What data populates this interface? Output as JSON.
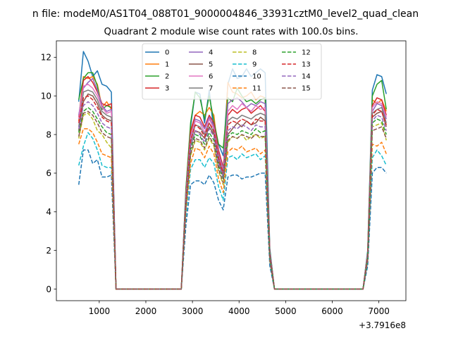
{
  "figure": {
    "suptitle": "n file: modeM0/AS1T04_088T01_9000004846_33931cztM0_level2_quad_clean"
  },
  "chart_data": {
    "type": "line",
    "title": "Quadrant 2 module wise count rates with 100.0s bins.",
    "xlabel": "",
    "ylabel": "",
    "xlim": [
      80,
      7580
    ],
    "ylim": [
      -0.6,
      12.85
    ],
    "x_offset_label": "+3.7916e8",
    "xticks": [
      1000,
      2000,
      3000,
      4000,
      5000,
      6000,
      7000
    ],
    "xtick_labels": [
      "1000",
      "2000",
      "3000",
      "4000",
      "5000",
      "6000",
      "7000"
    ],
    "yticks": [
      0,
      2,
      4,
      6,
      8,
      10,
      12
    ],
    "ytick_labels": [
      "0",
      "2",
      "4",
      "6",
      "8",
      "10",
      "12"
    ],
    "legend": {
      "placement": "top-center",
      "columns": 4
    },
    "x": [
      560,
      660,
      760,
      860,
      960,
      1060,
      1160,
      1260,
      1360,
      1460,
      2760,
      2860,
      2960,
      3060,
      3160,
      3260,
      3360,
      3460,
      3560,
      3660,
      3760,
      3860,
      3960,
      4060,
      4160,
      4260,
      4360,
      4460,
      4560,
      4660,
      4760,
      6660,
      6760,
      6860,
      6960,
      7060,
      7160
    ],
    "series": [
      {
        "name": "0",
        "color": "#1f77b4",
        "dash": "solid",
        "values": [
          9.7,
          12.3,
          11.8,
          11.0,
          11.3,
          10.6,
          10.5,
          10.2,
          0,
          0,
          0,
          5.2,
          8.4,
          10.2,
          10.1,
          8.6,
          10.3,
          8.1,
          7.5,
          6.9,
          10.6,
          11.4,
          10.9,
          11.0,
          11.4,
          11.0,
          11.2,
          11.4,
          11.2,
          2.1,
          0,
          0,
          2.0,
          10.3,
          11.1,
          11.0,
          10.1
        ]
      },
      {
        "name": "1",
        "color": "#ff7f0e",
        "dash": "solid",
        "values": [
          8.7,
          11.0,
          10.9,
          11.0,
          10.6,
          9.4,
          9.7,
          9.3,
          0,
          0,
          0,
          4.8,
          8.1,
          9.0,
          9.2,
          9.0,
          9.4,
          9.0,
          6.9,
          6.0,
          10.7,
          10.2,
          10.1,
          9.9,
          10.0,
          10.2,
          9.8,
          10.0,
          9.9,
          1.9,
          0,
          0,
          1.8,
          9.8,
          9.6,
          9.8,
          9.2
        ]
      },
      {
        "name": "2",
        "color": "#2ca02c",
        "dash": "solid",
        "values": [
          9.8,
          10.9,
          11.2,
          11.2,
          10.5,
          9.3,
          9.5,
          9.4,
          0,
          0,
          0,
          5.2,
          8.6,
          10.2,
          9.9,
          8.8,
          10.0,
          8.7,
          7.5,
          7.3,
          9.9,
          9.7,
          10.4,
          10.0,
          9.7,
          9.8,
          9.6,
          9.8,
          9.9,
          2.0,
          0,
          0,
          1.9,
          10.0,
          10.6,
          10.8,
          9.3
        ]
      },
      {
        "name": "3",
        "color": "#d62728",
        "dash": "solid",
        "values": [
          8.9,
          10.8,
          11.0,
          10.7,
          10.2,
          9.6,
          9.5,
          9.6,
          0,
          0,
          0,
          4.9,
          8.2,
          9.0,
          8.9,
          8.4,
          9.0,
          8.6,
          7.2,
          6.3,
          9.0,
          9.3,
          9.1,
          9.3,
          9.4,
          9.1,
          9.3,
          9.5,
          9.2,
          1.9,
          0,
          0,
          1.8,
          9.5,
          9.9,
          9.8,
          9.0
        ]
      },
      {
        "name": "4",
        "color": "#9467bd",
        "dash": "solid",
        "values": [
          9.0,
          10.4,
          10.7,
          10.9,
          10.3,
          9.5,
          9.2,
          9.3,
          0,
          0,
          0,
          4.7,
          7.9,
          8.8,
          8.7,
          8.3,
          8.9,
          8.4,
          7.0,
          6.2,
          9.6,
          9.8,
          9.9,
          9.7,
          9.4,
          9.6,
          9.5,
          9.7,
          9.6,
          1.9,
          0,
          0,
          1.8,
          9.2,
          9.6,
          9.5,
          8.8
        ]
      },
      {
        "name": "5",
        "color": "#8c564b",
        "dash": "solid",
        "values": [
          8.2,
          9.7,
          10.1,
          10.0,
          9.6,
          9.0,
          8.8,
          8.7,
          0,
          0,
          0,
          4.4,
          7.4,
          8.2,
          8.1,
          7.8,
          8.4,
          8.0,
          6.6,
          5.8,
          8.0,
          8.3,
          8.6,
          8.4,
          8.7,
          8.5,
          8.6,
          8.9,
          8.7,
          1.8,
          0,
          0,
          1.7,
          8.9,
          9.1,
          9.2,
          8.4
        ]
      },
      {
        "name": "6",
        "color": "#e377c2",
        "dash": "solid",
        "values": [
          8.8,
          10.5,
          10.6,
          10.4,
          10.0,
          9.4,
          9.1,
          9.2,
          0,
          0,
          0,
          4.8,
          7.8,
          8.7,
          8.6,
          8.1,
          8.8,
          8.3,
          6.9,
          6.1,
          9.2,
          9.5,
          9.3,
          9.6,
          9.4,
          9.2,
          9.5,
          9.3,
          9.4,
          1.9,
          0,
          0,
          1.8,
          9.4,
          9.7,
          9.6,
          8.9
        ]
      },
      {
        "name": "7",
        "color": "#7f7f7f",
        "dash": "solid",
        "values": [
          8.4,
          10.2,
          10.3,
          10.2,
          9.8,
          9.2,
          9.0,
          8.9,
          0,
          0,
          0,
          4.6,
          7.6,
          8.5,
          8.4,
          8.0,
          8.6,
          8.1,
          6.8,
          6.0,
          8.7,
          8.9,
          8.8,
          9.0,
          8.9,
          8.8,
          9.0,
          9.1,
          9.0,
          1.8,
          0,
          0,
          1.7,
          9.1,
          9.3,
          9.4,
          8.6
        ]
      },
      {
        "name": "8",
        "color": "#bcbd22",
        "dash": "dashed",
        "values": [
          7.8,
          9.0,
          9.1,
          8.8,
          8.2,
          8.0,
          7.6,
          7.3,
          0,
          0,
          0,
          4.2,
          6.9,
          7.7,
          7.6,
          7.2,
          7.8,
          7.4,
          6.1,
          5.4,
          7.6,
          7.9,
          7.8,
          8.0,
          7.7,
          7.9,
          8.0,
          7.8,
          7.9,
          1.6,
          0,
          0,
          1.6,
          8.4,
          8.5,
          8.6,
          7.7
        ]
      },
      {
        "name": "9",
        "color": "#17becf",
        "dash": "dashed",
        "values": [
          6.4,
          7.4,
          8.1,
          7.8,
          7.2,
          6.4,
          6.3,
          6.3,
          0,
          0,
          0,
          3.8,
          6.2,
          6.7,
          6.7,
          6.3,
          6.8,
          6.5,
          5.3,
          4.6,
          6.8,
          6.9,
          6.7,
          7.0,
          6.8,
          6.9,
          7.0,
          6.7,
          6.9,
          1.4,
          0,
          0,
          1.4,
          6.8,
          7.2,
          6.9,
          6.4
        ]
      },
      {
        "name": "10",
        "color": "#1f77b4",
        "dash": "dashed",
        "values": [
          5.4,
          7.2,
          7.2,
          6.5,
          6.7,
          5.8,
          5.8,
          5.9,
          0,
          0,
          0,
          3.3,
          5.4,
          5.6,
          5.6,
          5.4,
          5.9,
          5.5,
          4.6,
          4.1,
          5.8,
          5.9,
          5.9,
          5.7,
          5.8,
          5.8,
          5.9,
          6.0,
          6.0,
          1.2,
          0,
          0,
          1.2,
          6.0,
          6.3,
          6.3,
          6.0
        ]
      },
      {
        "name": "11",
        "color": "#ff7f0e",
        "dash": "dashed",
        "values": [
          7.5,
          8.3,
          8.3,
          8.1,
          7.6,
          7.0,
          6.9,
          6.8,
          0,
          0,
          0,
          4.1,
          6.5,
          7.3,
          7.2,
          6.8,
          7.4,
          7.0,
          5.7,
          5.0,
          7.1,
          7.3,
          7.2,
          7.4,
          7.1,
          7.2,
          7.3,
          7.0,
          7.2,
          1.5,
          0,
          0,
          1.5,
          7.5,
          7.4,
          7.6,
          7.0
        ]
      },
      {
        "name": "12",
        "color": "#2ca02c",
        "dash": "dashed",
        "values": [
          8.1,
          9.2,
          9.4,
          9.2,
          8.8,
          8.4,
          8.1,
          8.0,
          0,
          0,
          0,
          4.4,
          7.2,
          8.0,
          7.9,
          7.5,
          8.1,
          7.7,
          6.4,
          5.7,
          7.9,
          8.1,
          8.0,
          8.2,
          8.1,
          8.0,
          8.3,
          8.1,
          8.2,
          1.7,
          0,
          0,
          1.6,
          8.6,
          8.8,
          8.7,
          8.0
        ]
      },
      {
        "name": "13",
        "color": "#d62728",
        "dash": "dashed",
        "values": [
          8.6,
          9.9,
          10.0,
          9.8,
          9.4,
          8.9,
          8.7,
          8.6,
          0,
          0,
          0,
          4.6,
          7.7,
          8.5,
          8.3,
          7.9,
          8.6,
          8.2,
          6.8,
          6.0,
          8.5,
          8.7,
          8.6,
          8.8,
          8.7,
          8.5,
          8.8,
          8.7,
          8.7,
          1.8,
          0,
          0,
          1.7,
          9.0,
          9.3,
          9.2,
          8.5
        ]
      },
      {
        "name": "14",
        "color": "#9467bd",
        "dash": "dashed",
        "values": [
          8.3,
          9.5,
          9.7,
          9.5,
          9.1,
          8.6,
          8.4,
          8.3,
          0,
          0,
          0,
          4.5,
          7.4,
          8.2,
          8.0,
          7.6,
          8.3,
          7.9,
          6.5,
          5.8,
          8.2,
          8.4,
          8.3,
          8.5,
          8.4,
          8.2,
          8.5,
          8.4,
          8.4,
          1.7,
          0,
          0,
          1.6,
          8.7,
          9.0,
          8.9,
          8.2
        ]
      },
      {
        "name": "15",
        "color": "#8c564b",
        "dash": "dashed",
        "values": [
          7.9,
          9.1,
          9.2,
          9.0,
          8.6,
          8.1,
          7.9,
          7.8,
          0,
          0,
          0,
          4.3,
          7.0,
          7.8,
          7.7,
          7.3,
          7.9,
          7.5,
          6.2,
          5.5,
          7.7,
          7.9,
          7.8,
          8.0,
          7.9,
          7.8,
          8.0,
          7.9,
          7.9,
          1.6,
          0,
          0,
          1.6,
          8.2,
          8.3,
          8.4,
          7.8
        ]
      }
    ]
  }
}
